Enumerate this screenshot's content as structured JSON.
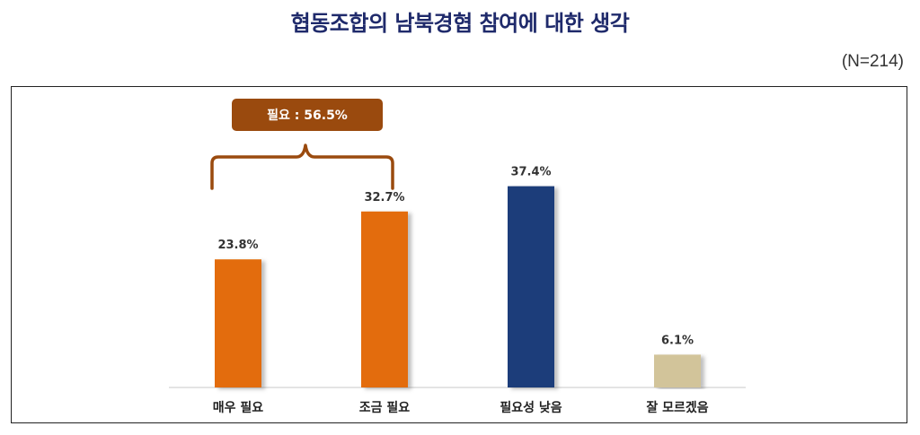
{
  "title": "협동조합의 남북경협 참여에 대한 생각",
  "sample_size": "(N=214)",
  "annotation": {
    "label": "필요 : 56.5%",
    "color": "#9a4a0e"
  },
  "chart_data": {
    "type": "bar",
    "categories": [
      "매우 필요",
      "조금 필요",
      "필요성 낮음",
      "잘 모르겠음"
    ],
    "values": [
      23.8,
      32.7,
      37.4,
      6.1
    ],
    "value_labels": [
      "23.8%",
      "32.7%",
      "37.4%",
      "6.1%"
    ],
    "colors": [
      "#e36c0a",
      "#e36c0a",
      "#1f3d7a",
      "#d2c49a"
    ],
    "ylim": [
      0,
      40
    ],
    "grid": false,
    "legend": "none",
    "xlabel": "",
    "ylabel": ""
  }
}
